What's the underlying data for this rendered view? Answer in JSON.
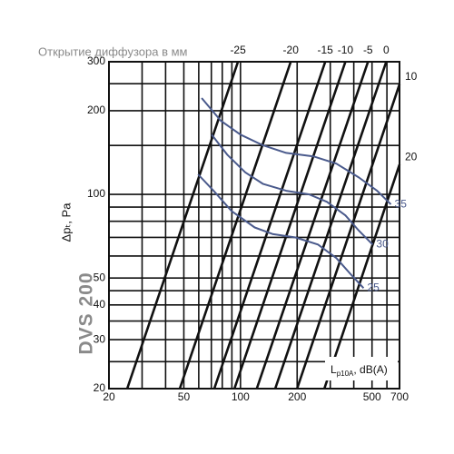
{
  "chart_data": {
    "type": "line",
    "title": "Открытие диффузора в мм",
    "ylabel": "Δpₜ, Pa",
    "model": "DVS 200",
    "legend_label": {
      "main": "L",
      "sub": "p10A",
      "rest": ", dB(A)"
    },
    "log_x": true,
    "log_y": true,
    "xlim": [
      20,
      700
    ],
    "ylim": [
      20,
      300
    ],
    "xticks": [
      20,
      50,
      100,
      200,
      500,
      700
    ],
    "yticks": [
      20,
      30,
      40,
      50,
      100,
      200,
      300
    ],
    "xgrid": [
      20,
      30,
      40,
      50,
      60,
      70,
      80,
      90,
      100,
      200,
      300,
      400,
      500,
      600,
      700
    ],
    "ygrid": [
      20,
      25,
      30,
      35,
      40,
      45,
      50,
      60,
      70,
      80,
      90,
      100,
      150,
      200,
      250,
      300
    ],
    "opening_lines": [
      {
        "name": "-25",
        "color": "#111111",
        "x": [
          25,
          97
        ],
        "values": [
          20,
          300
        ]
      },
      {
        "name": "-20",
        "color": "#111111",
        "x": [
          47.6,
          185
        ],
        "values": [
          20,
          300
        ]
      },
      {
        "name": "-15",
        "color": "#111111",
        "x": [
          72.6,
          282
        ],
        "values": [
          20,
          300
        ]
      },
      {
        "name": "-10",
        "color": "#111111",
        "x": [
          92.9,
          361
        ],
        "values": [
          20,
          300
        ]
      },
      {
        "name": "-5",
        "color": "#111111",
        "x": [
          122,
          476
        ],
        "values": [
          20,
          300
        ]
      },
      {
        "name": "0",
        "color": "#111111",
        "x": [
          153,
          595
        ],
        "values": [
          20,
          300
        ]
      },
      {
        "name": "10",
        "color": "#111111",
        "x": [
          200,
          700
        ],
        "values": [
          20,
          249
        ]
      },
      {
        "name": "20",
        "color": "#111111",
        "x": [
          279,
          700
        ],
        "values": [
          20,
          128
        ]
      }
    ],
    "noise_curves": [
      {
        "name": "35",
        "color": "#4a5a8c",
        "x": [
          62.2,
          78.6,
          100,
          132,
          175,
          244,
          323,
          426,
          532,
          630
        ],
        "values": [
          222,
          184,
          164,
          150,
          141,
          137,
          129,
          115,
          103,
          92
        ]
      },
      {
        "name": "30",
        "color": "#4a5a8c",
        "x": [
          70.3,
          85,
          106,
          132,
          175,
          231,
          288,
          361,
          426,
          504
        ],
        "values": [
          164,
          139,
          120,
          109,
          103,
          100,
          94,
          84,
          74,
          66
        ]
      },
      {
        "name": "25",
        "color": "#4a5a8c",
        "x": [
          59.5,
          71.9,
          89.8,
          119,
          148,
          196,
          258,
          323,
          381,
          451
        ],
        "values": [
          118,
          103,
          87,
          76,
          72,
          70,
          66,
          59,
          52,
          46
        ]
      }
    ]
  }
}
